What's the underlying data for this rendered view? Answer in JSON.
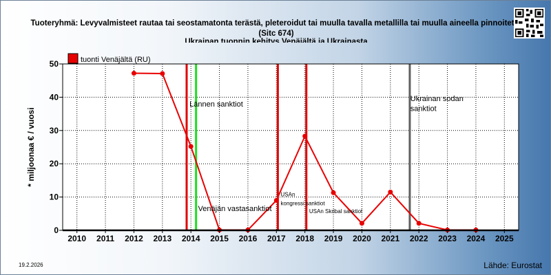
{
  "footer": {
    "date": "19.2.2026",
    "source": "Lähde: Eurostat"
  },
  "qr": {
    "icon": "qr-code-icon"
  },
  "chart_data": {
    "type": "line",
    "title": "Tuoteryhmä: Levyvalmisteet rautaa tai seostamatonta terästä, pleteroidut tai muulla tavalla metallilla tai muulla aineella pinnoitetut",
    "subtitle": "(Sitc 674)",
    "subtitle2": "Ukrainan tuonnin kehitys  Venäjältä ja Ukrainasta",
    "ylabel": "* miljoonaa € / vuosi",
    "xlabel": "",
    "ylim": [
      0,
      50
    ],
    "yticks": [
      0,
      10,
      20,
      30,
      40,
      50
    ],
    "xlim": [
      2009.5,
      2025.5
    ],
    "categories": [
      "2010",
      "2011",
      "2012",
      "2013",
      "2014",
      "2015",
      "2016",
      "2017",
      "2018",
      "2019",
      "2020",
      "2021",
      "2022",
      "2023",
      "2024",
      "2025"
    ],
    "grid": true,
    "legend_position": "top-left",
    "series": [
      {
        "name": "tuonti Venäjältä (RU)",
        "color": "#e80000",
        "x": [
          2012,
          2013,
          2014,
          2015,
          2016,
          2017,
          2018,
          2019,
          2020,
          2021,
          2022,
          2023,
          2024
        ],
        "y": [
          47.2,
          47.1,
          25.2,
          0.1,
          0.1,
          9.0,
          28.3,
          11.3,
          2.1,
          11.5,
          2.1,
          0.1,
          0.1
        ]
      }
    ],
    "events": [
      {
        "x": 2013.85,
        "color": "#e00000",
        "label": ""
      },
      {
        "x": 2014.18,
        "color": "#1ee01e",
        "label": ""
      },
      {
        "x": 2017.05,
        "color": "#e00000",
        "label": ""
      },
      {
        "x": 2018.05,
        "color": "#e00000",
        "label": ""
      },
      {
        "x": 2021.68,
        "color": "#606060",
        "label": ""
      }
    ],
    "annotations": [
      {
        "text": "Lännen sanktiot",
        "x": 2013.95,
        "y": 37.2,
        "size": 11
      },
      {
        "text": "Venäjän vastasanktiot",
        "x": 2014.25,
        "y": 5.8,
        "size": 11
      },
      {
        "text": "USAn",
        "x": 2017.15,
        "y": 10.2,
        "size": 8
      },
      {
        "text": "kongressi sanktiot",
        "x": 2017.15,
        "y": 7.5,
        "size": 8
      },
      {
        "text": "USAn Skribal sanktiot",
        "x": 2018.15,
        "y": 5.2,
        "size": 8
      },
      {
        "text": "Ukrainan sodan",
        "x": 2021.7,
        "y": 38.8,
        "size": 11
      },
      {
        "text": "sanktiot",
        "x": 2021.7,
        "y": 35.8,
        "size": 11
      }
    ]
  }
}
